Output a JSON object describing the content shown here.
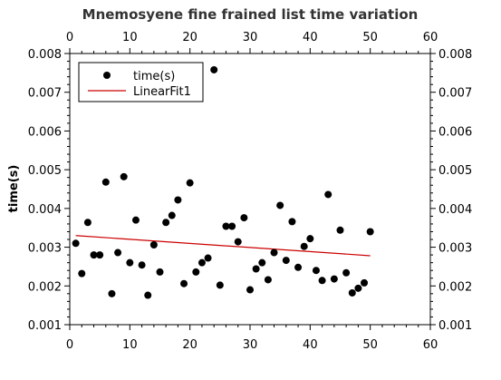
{
  "chart_data": {
    "type": "scatter",
    "title": "Mnemosyene fine frained list time variation",
    "xlabel": "",
    "ylabel": "time(s)",
    "xlim": [
      0,
      60
    ],
    "ylim": [
      0.001,
      0.008
    ],
    "x_ticks": [
      "0",
      "10",
      "20",
      "30",
      "40",
      "50",
      "60"
    ],
    "y_ticks": [
      "0.001",
      "0.002",
      "0.003",
      "0.004",
      "0.005",
      "0.006",
      "0.007",
      "0.008"
    ],
    "grid": false,
    "legend_position": "top-left",
    "series": [
      {
        "name": "time(s)",
        "kind": "points",
        "color": "#000000",
        "points": [
          [
            1,
            0.0031
          ],
          [
            2,
            0.00232
          ],
          [
            3,
            0.00364
          ],
          [
            4,
            0.0028
          ],
          [
            5,
            0.0028
          ],
          [
            6,
            0.00468
          ],
          [
            7,
            0.0018
          ],
          [
            8,
            0.00286
          ],
          [
            9,
            0.00482
          ],
          [
            10,
            0.0026
          ],
          [
            11,
            0.0037
          ],
          [
            12,
            0.00254
          ],
          [
            13,
            0.00176
          ],
          [
            14,
            0.00306
          ],
          [
            15,
            0.00236
          ],
          [
            16,
            0.00364
          ],
          [
            17,
            0.00382
          ],
          [
            18,
            0.00422
          ],
          [
            19,
            0.00206
          ],
          [
            20,
            0.00466
          ],
          [
            21,
            0.00236
          ],
          [
            22,
            0.0026
          ],
          [
            23,
            0.00272
          ],
          [
            24,
            0.00758
          ],
          [
            25,
            0.00202
          ],
          [
            26,
            0.00354
          ],
          [
            27,
            0.00354
          ],
          [
            28,
            0.00314
          ],
          [
            29,
            0.00376
          ],
          [
            30,
            0.0019
          ],
          [
            31,
            0.00244
          ],
          [
            32,
            0.0026
          ],
          [
            33,
            0.00216
          ],
          [
            34,
            0.00286
          ],
          [
            35,
            0.00408
          ],
          [
            36,
            0.00266
          ],
          [
            37,
            0.00366
          ],
          [
            38,
            0.00248
          ],
          [
            39,
            0.00302
          ],
          [
            40,
            0.00322
          ],
          [
            41,
            0.0024
          ],
          [
            42,
            0.00214
          ],
          [
            43,
            0.00436
          ],
          [
            44,
            0.00218
          ],
          [
            45,
            0.00344
          ],
          [
            46,
            0.00234
          ],
          [
            47,
            0.00182
          ],
          [
            48,
            0.00194
          ],
          [
            49,
            0.00208
          ],
          [
            50,
            0.0034
          ]
        ]
      },
      {
        "name": "LinearFit1",
        "kind": "line",
        "color": "#cc0000",
        "points": [
          [
            1,
            0.0033
          ],
          [
            50,
            0.00278
          ]
        ]
      }
    ]
  }
}
